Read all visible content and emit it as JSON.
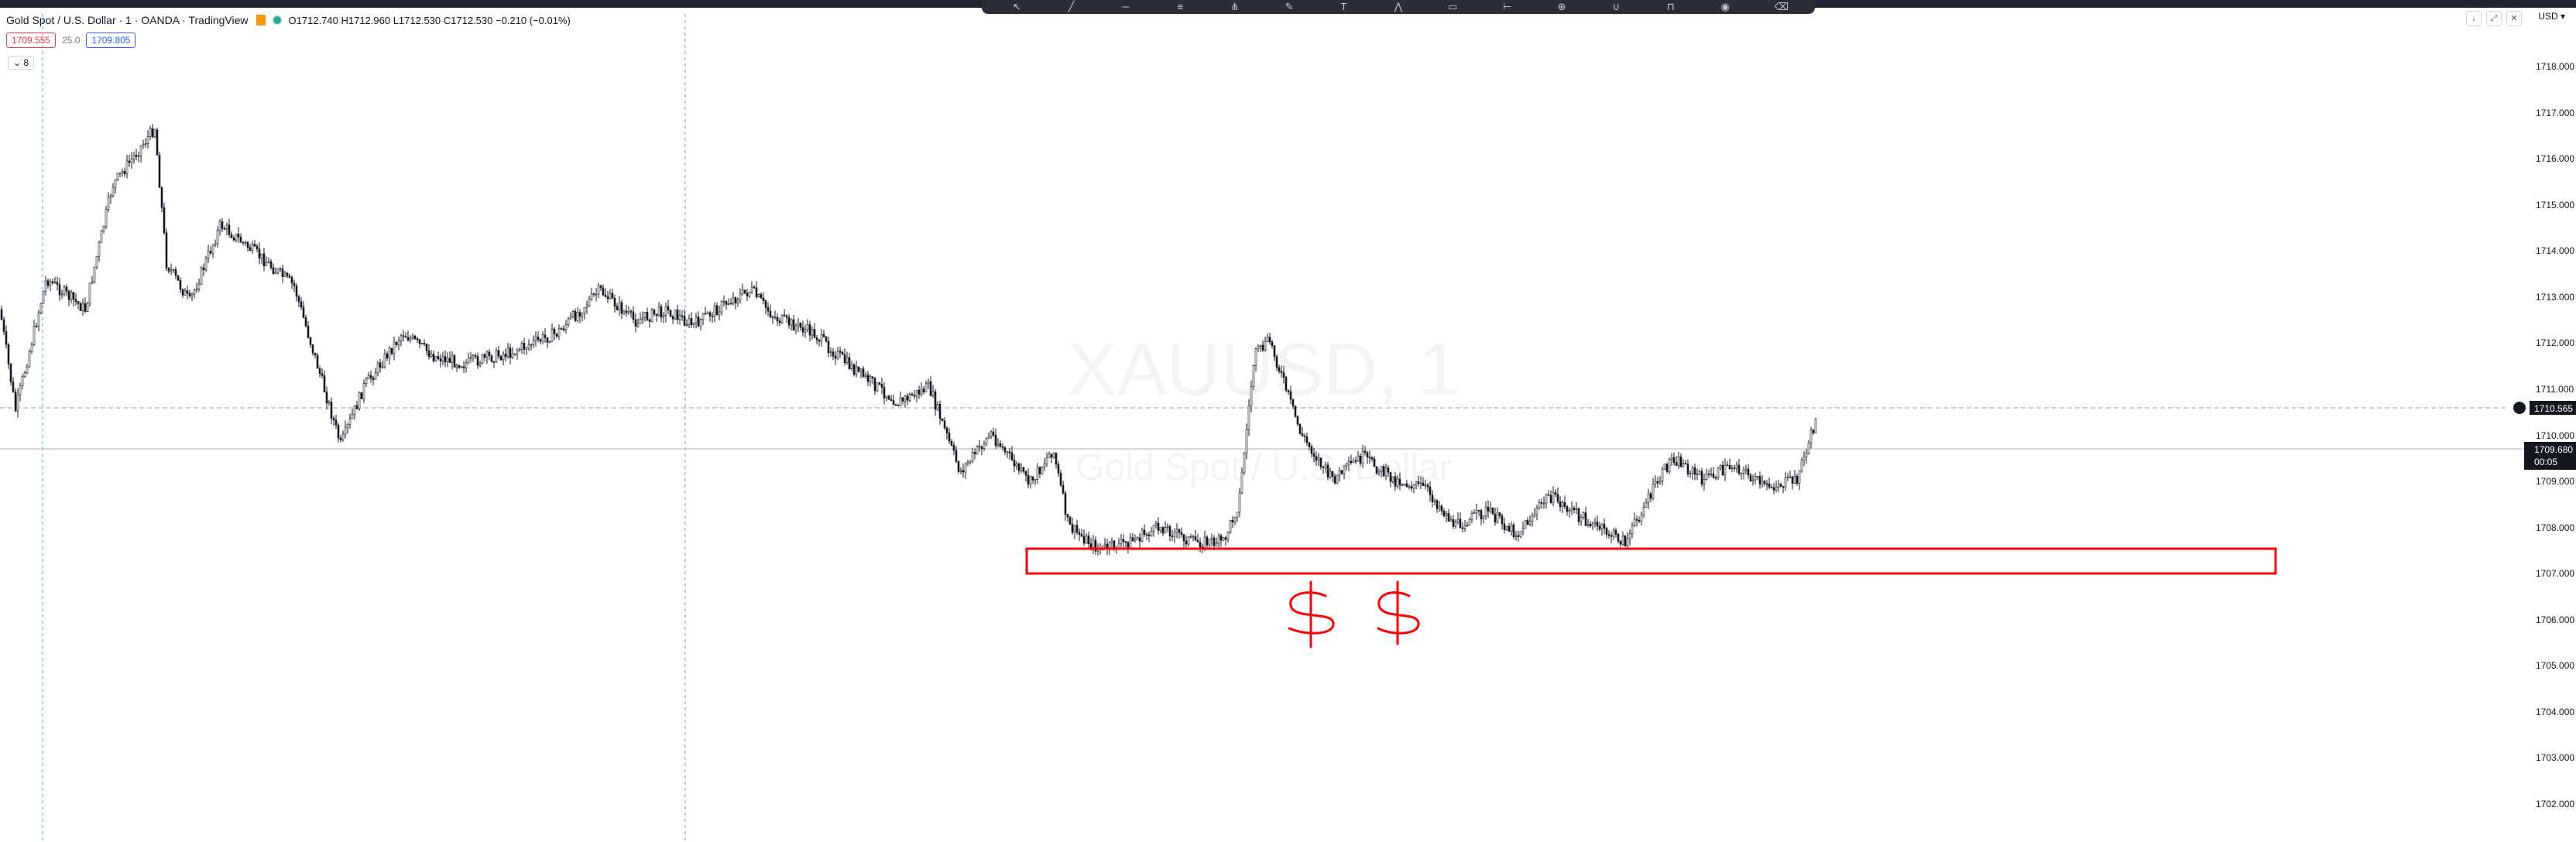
{
  "header": {
    "symbol_title": "Gold Spot  / U.S. Dollar · 1 · OANDA · TradingView",
    "ohlc": "O1712.740 H1712.960 L1712.530 C1712.530 −0.210 (−0.01%)"
  },
  "quote": {
    "bid": "1709.555",
    "spread": "25.0",
    "ask": "1709.805"
  },
  "collapse_label": "8",
  "currency_label": "USD",
  "watermark": {
    "ticker": "XAUUSD, 1",
    "name": "Gold Spot / U.S. Dollar"
  },
  "price_axis": {
    "ticks": [
      "1718.000",
      "1717.000",
      "1716.000",
      "1715.000",
      "1714.000",
      "1713.000",
      "1712.000",
      "1711.000",
      "1710.000",
      "1709.000",
      "1708.000",
      "1707.000",
      "1706.000",
      "1705.000",
      "1704.000",
      "1703.000",
      "1702.000"
    ],
    "marker_dark": "1710.565",
    "marker_last": "1709.680",
    "marker_countdown": "00:05"
  },
  "annotation": {
    "text": "$ $",
    "color": "#ff0000"
  },
  "colors": {
    "candle": "#131722",
    "accent_red": "#ff0000",
    "crosshair": "#2962ff"
  },
  "icons": [
    "cursor-icon",
    "trend-line-icon",
    "fib-icon",
    "brush-icon",
    "text-icon",
    "pattern-icon",
    "ruler-icon",
    "zoom-icon",
    "magnet-icon",
    "lock-icon",
    "eye-icon",
    "trash-icon"
  ]
}
